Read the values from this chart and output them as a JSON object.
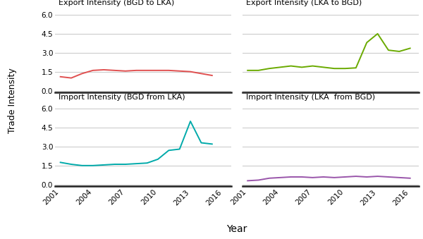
{
  "years_bgd_lka": [
    2001,
    2002,
    2003,
    2004,
    2005,
    2006,
    2007,
    2008,
    2009,
    2010,
    2011,
    2012,
    2013,
    2014,
    2015
  ],
  "bgd_to_lka": [
    1.1,
    1.0,
    1.35,
    1.6,
    1.65,
    1.6,
    1.55,
    1.6,
    1.6,
    1.6,
    1.6,
    1.55,
    1.5,
    1.35,
    1.2
  ],
  "years_lka_bgd": [
    2001,
    2002,
    2003,
    2004,
    2005,
    2006,
    2007,
    2008,
    2009,
    2010,
    2011,
    2012,
    2013,
    2014,
    2015,
    2016
  ],
  "lka_to_bgd": [
    1.6,
    1.6,
    1.75,
    1.85,
    1.95,
    1.85,
    1.95,
    1.85,
    1.75,
    1.75,
    1.8,
    3.8,
    4.5,
    3.2,
    3.1,
    3.35
  ],
  "years_bgd_from_lka": [
    2001,
    2002,
    2003,
    2004,
    2005,
    2006,
    2007,
    2008,
    2009,
    2010,
    2011,
    2012,
    2013,
    2014,
    2015
  ],
  "bgd_from_lka": [
    1.75,
    1.6,
    1.5,
    1.5,
    1.55,
    1.6,
    1.6,
    1.65,
    1.7,
    2.0,
    2.7,
    2.8,
    5.0,
    3.3,
    3.2
  ],
  "years_lka_from_bgd": [
    2001,
    2002,
    2003,
    2004,
    2005,
    2006,
    2007,
    2008,
    2009,
    2010,
    2011,
    2012,
    2013,
    2014,
    2015,
    2016
  ],
  "lka_from_bgd": [
    0.3,
    0.35,
    0.5,
    0.55,
    0.6,
    0.6,
    0.55,
    0.6,
    0.55,
    0.6,
    0.65,
    0.6,
    0.65,
    0.6,
    0.55,
    0.5
  ],
  "color_bgd_lka": "#e05050",
  "color_lka_bgd": "#6aaa00",
  "color_bgd_from_lka": "#00aaaa",
  "color_lka_from_bgd": "#9955aa",
  "yticks": [
    0.0,
    1.5,
    3.0,
    4.5,
    6.0
  ],
  "ylim": [
    -0.15,
    6.6
  ],
  "xticks": [
    2001,
    2004,
    2007,
    2010,
    2013,
    2016
  ],
  "xlim": [
    2000.5,
    2016.8
  ],
  "title_tl": "Export Intensity (BGD to LKA)",
  "title_tr": "Export Intensity (LKA to BGD)",
  "title_bl": "Import Intensity (BGD from LKA)",
  "title_br": "Import Intensity (LKA  from BGD)",
  "ylabel": "Trade Intensity",
  "xlabel": "Year",
  "bg_color": "#ffffff",
  "grid_color": "#cccccc",
  "spine_color": "#222222"
}
